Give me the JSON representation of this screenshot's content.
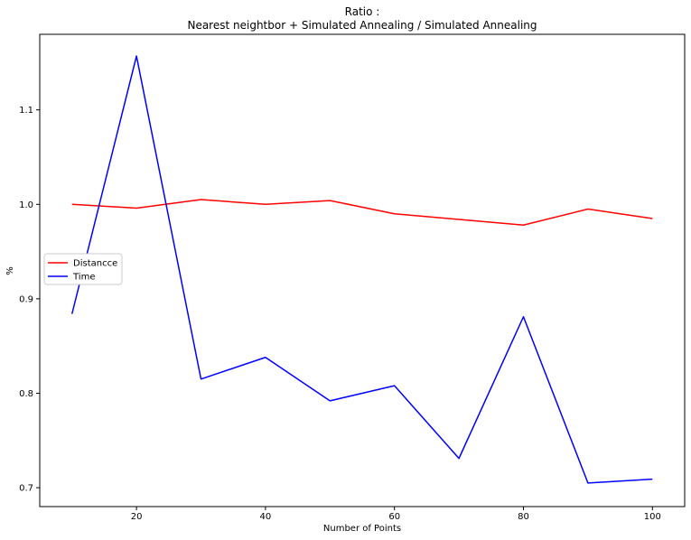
{
  "chart_data": {
    "type": "line",
    "title": "Ratio :",
    "subtitle": "Nearest neightbor + Simulated Annealing / Simulated Annealing",
    "xlabel": "Number of Points",
    "ylabel": "%",
    "x": [
      10,
      20,
      30,
      40,
      50,
      60,
      70,
      80,
      90,
      100
    ],
    "xticks": [
      "20",
      "40",
      "60",
      "80",
      "100"
    ],
    "yticks": [
      "0.7",
      "0.8",
      "0.9",
      "1.0",
      "1.1"
    ],
    "xlim": [
      5,
      105
    ],
    "ylim": [
      0.68,
      1.18
    ],
    "grid": false,
    "legend_position": "center-left",
    "series": [
      {
        "name": "Distancce",
        "color": "#ff0000",
        "values": [
          1.0,
          0.996,
          1.005,
          1.0,
          1.004,
          0.99,
          0.984,
          0.978,
          0.995,
          0.985
        ]
      },
      {
        "name": "Time",
        "color": "#0000ff",
        "values": [
          0.884,
          1.157,
          0.815,
          0.838,
          0.792,
          0.808,
          0.731,
          0.881,
          0.705,
          0.709
        ]
      }
    ]
  }
}
